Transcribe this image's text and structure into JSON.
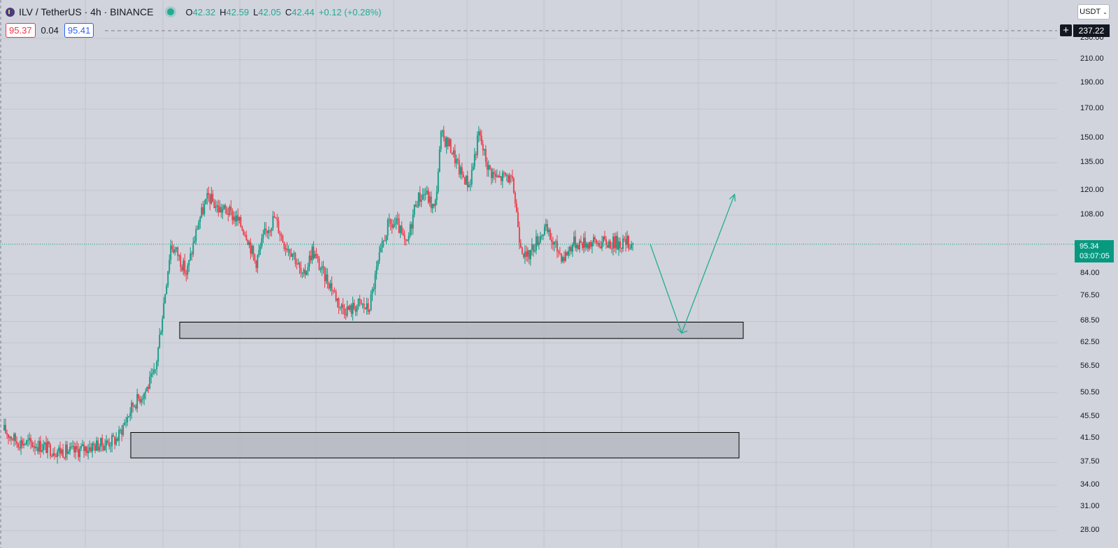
{
  "legend": {
    "symbol": "ILV / TetherUS · 4h · BINANCE",
    "open_label": "O",
    "open": "42.32",
    "high_label": "H",
    "high": "42.59",
    "low_label": "L",
    "low": "42.05",
    "close_label": "C",
    "close": "42.44",
    "change": "+0.12 (+0.28%)"
  },
  "spread": {
    "sell": "95.37",
    "value": "0.04",
    "buy": "95.41"
  },
  "currency": {
    "label": "USDT"
  },
  "top_price": "237.22",
  "last_price": {
    "price": "95.34",
    "countdown": "03:07:05"
  },
  "colors": {
    "background": "#d1d4dc",
    "up": "#089981",
    "down": "#f23645",
    "zone_fill": "#b2b5be",
    "arrow": "#22ab94"
  },
  "chart_data": {
    "type": "candlestick",
    "scale": "log",
    "y_ticks": [
      230,
      210,
      190,
      170,
      150,
      135,
      120,
      108,
      95.34,
      84,
      76.5,
      68.5,
      62.5,
      56.5,
      50.5,
      45.5,
      41.5,
      37.5,
      34,
      31,
      28
    ],
    "y_tick_labels": [
      "230.00",
      "210.00",
      "190.00",
      "170.00",
      "150.00",
      "135.00",
      "120.00",
      "108.00",
      "84.00",
      "76.50",
      "68.50",
      "62.50",
      "56.50",
      "50.50",
      "45.50",
      "41.50",
      "37.50",
      "34.00",
      "31.00",
      "28.00"
    ],
    "ylim": [
      26.5,
      243
    ],
    "grid": true,
    "price_path": [
      [
        0,
        43
      ],
      [
        0.02,
        41
      ],
      [
        0.05,
        40.5
      ],
      [
        0.08,
        39.5
      ],
      [
        0.11,
        39.2
      ],
      [
        0.14,
        40.2
      ],
      [
        0.16,
        40.6
      ],
      [
        0.18,
        41.5
      ],
      [
        0.205,
        48
      ],
      [
        0.225,
        51
      ],
      [
        0.24,
        55
      ],
      [
        0.25,
        68
      ],
      [
        0.265,
        95
      ],
      [
        0.275,
        92
      ],
      [
        0.29,
        84
      ],
      [
        0.31,
        106
      ],
      [
        0.325,
        117
      ],
      [
        0.34,
        111
      ],
      [
        0.355,
        110
      ],
      [
        0.37,
        106
      ],
      [
        0.385,
        100
      ],
      [
        0.4,
        88
      ],
      [
        0.415,
        100
      ],
      [
        0.43,
        107
      ],
      [
        0.445,
        96
      ],
      [
        0.46,
        92
      ],
      [
        0.475,
        82
      ],
      [
        0.49,
        93
      ],
      [
        0.505,
        85
      ],
      [
        0.52,
        80
      ],
      [
        0.535,
        73
      ],
      [
        0.55,
        72
      ],
      [
        0.565,
        74
      ],
      [
        0.58,
        72
      ],
      [
        0.595,
        88
      ],
      [
        0.61,
        103
      ],
      [
        0.625,
        104
      ],
      [
        0.64,
        94
      ],
      [
        0.655,
        115
      ],
      [
        0.67,
        119
      ],
      [
        0.685,
        110
      ],
      [
        0.695,
        152
      ],
      [
        0.71,
        145
      ],
      [
        0.725,
        130
      ],
      [
        0.74,
        123
      ],
      [
        0.755,
        153
      ],
      [
        0.77,
        132
      ],
      [
        0.785,
        126
      ],
      [
        0.8,
        128
      ],
      [
        0.81,
        122
      ],
      [
        0.82,
        98
      ],
      [
        0.83,
        89
      ],
      [
        0.845,
        96
      ],
      [
        0.86,
        102
      ],
      [
        0.875,
        95
      ],
      [
        0.89,
        90
      ],
      [
        0.905,
        96
      ]
    ],
    "zones": [
      {
        "price_top": 68.3,
        "price_bottom": 63.7
      },
      {
        "price_top": 42.6,
        "price_bottom": 38.2
      }
    ],
    "projection": [
      [
        0,
        95.34
      ],
      [
        0.05,
        65.2
      ],
      [
        0.134,
        118
      ]
    ],
    "last_price": 95.34
  }
}
